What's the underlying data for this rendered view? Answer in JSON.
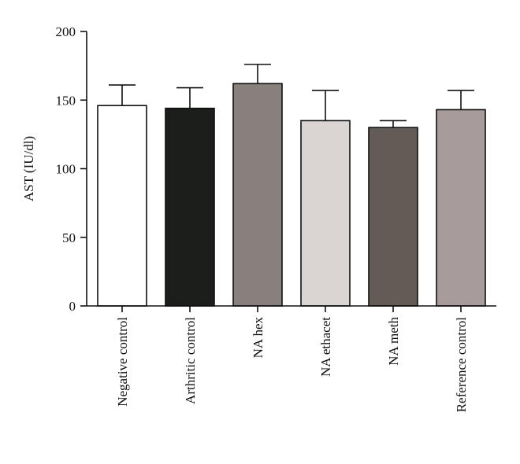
{
  "chart_data": {
    "type": "bar",
    "title": "",
    "xlabel": "",
    "ylabel": "AST (IU/dl)",
    "ylim": [
      0,
      200
    ],
    "yticks": [
      0,
      50,
      100,
      150,
      200
    ],
    "grid": false,
    "categories": [
      "Negative control",
      "Arthritic control",
      "NA hex",
      "NA ethacet",
      "NA meth",
      "Reference control"
    ],
    "values": [
      146,
      144,
      162,
      135,
      130,
      143
    ],
    "error_upper": [
      15,
      15,
      14,
      22,
      5,
      14
    ],
    "bar_colors": [
      "#ffffff",
      "#1c1e1b",
      "#87807d",
      "#dad4d3",
      "#635b56",
      "#a79c9b"
    ],
    "bar_edge_color": "#111111"
  }
}
